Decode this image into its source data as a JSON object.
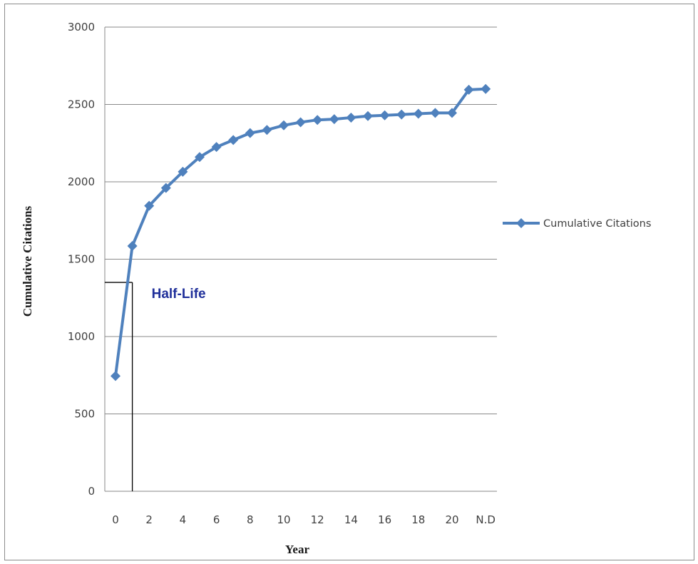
{
  "chart_data": {
    "type": "line",
    "xlabel": "Year",
    "ylabel": "Cumulative Citations",
    "ylim": [
      0,
      3000
    ],
    "yticks": [
      0,
      500,
      1000,
      1500,
      2000,
      2500,
      3000
    ],
    "categories": [
      "0",
      "1",
      "2",
      "3",
      "4",
      "5",
      "6",
      "7",
      "8",
      "9",
      "10",
      "11",
      "12",
      "13",
      "14",
      "15",
      "16",
      "17",
      "18",
      "19",
      "20",
      "21",
      "N.D"
    ],
    "category_tick_labels": [
      "0",
      "",
      "2",
      "",
      "4",
      "",
      "6",
      "",
      "8",
      "",
      "10",
      "",
      "12",
      "",
      "14",
      "",
      "16",
      "",
      "18",
      "",
      "20",
      "",
      "N.D"
    ],
    "series": [
      {
        "name": "Cumulative Citations",
        "color": "#4f81bd",
        "marker": "diamond",
        "values": [
          745,
          1585,
          1845,
          1960,
          2065,
          2160,
          2225,
          2270,
          2315,
          2335,
          2365,
          2385,
          2400,
          2405,
          2415,
          2425,
          2430,
          2435,
          2440,
          2445,
          2445,
          2595,
          2600
        ]
      }
    ],
    "grid": true,
    "legend_position": "right",
    "annotations": [
      {
        "text": "Half-Life",
        "reference_value": 1350,
        "reference_x_index": 1,
        "color": "#1f2f9a"
      }
    ]
  }
}
